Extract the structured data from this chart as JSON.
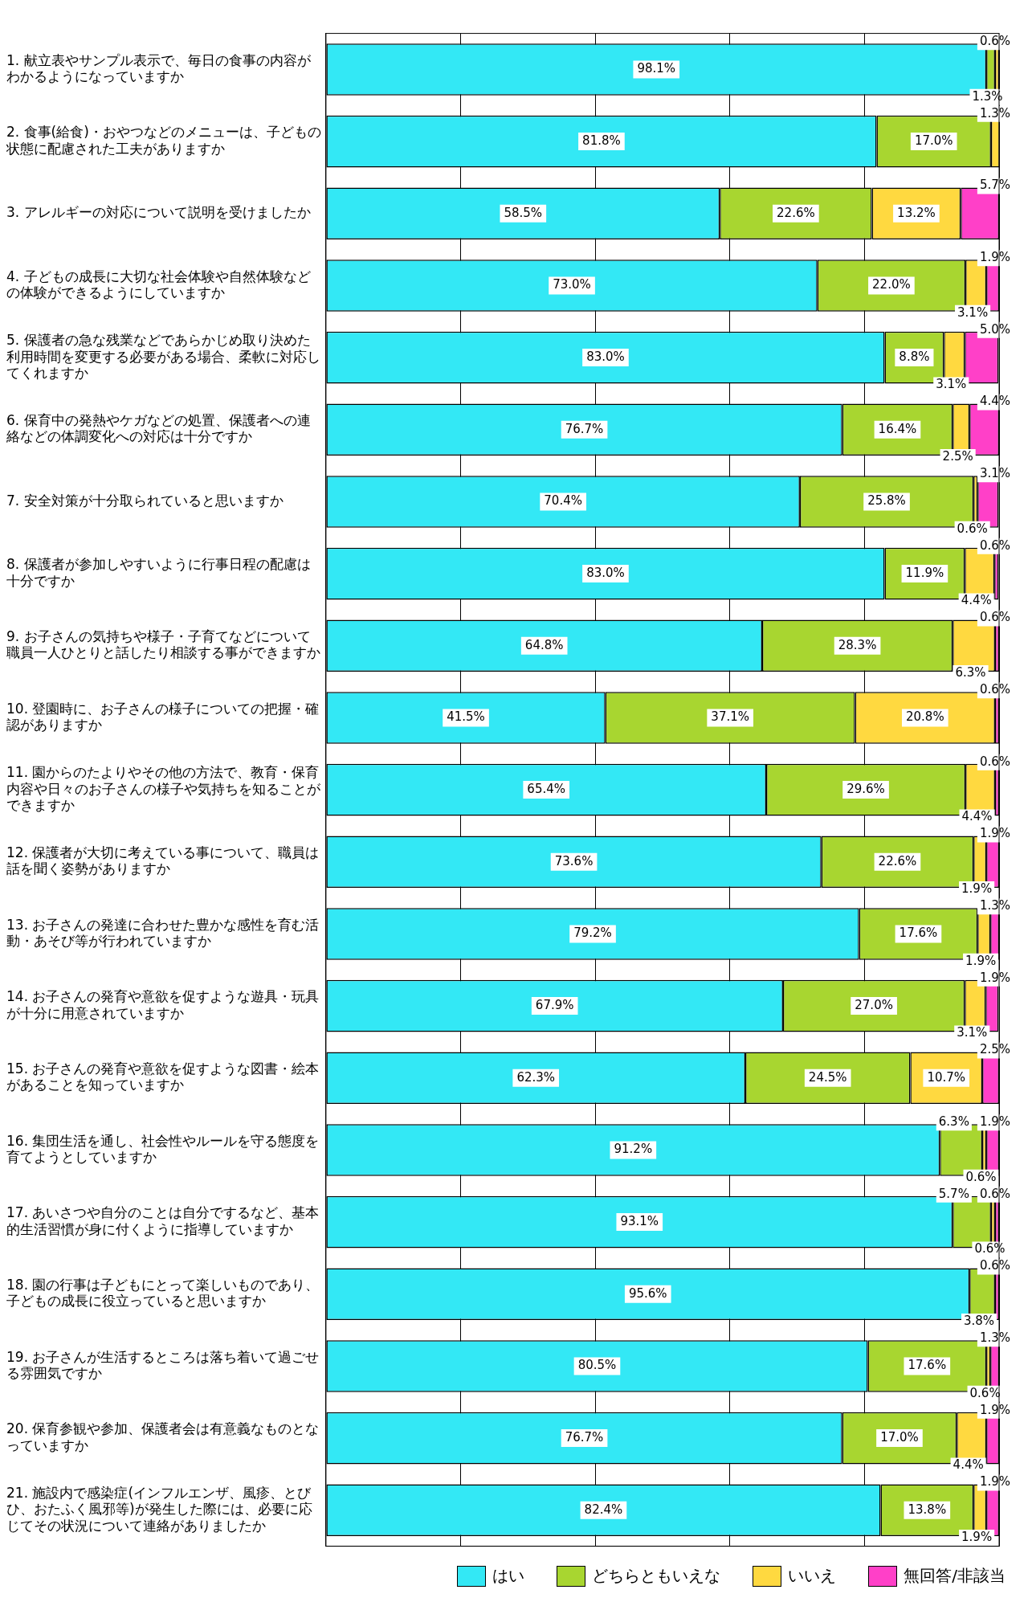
{
  "chart_data": {
    "type": "bar",
    "orientation": "horizontal",
    "stacked": true,
    "categories": [
      "1. 献立表やサンプル表示で、毎日の食事の内容がわかるようになっていますか",
      "2. 食事(給食)・おやつなどのメニューは、子どもの状態に配慮された工夫がありますか",
      "3. アレルギーの対応について説明を受けましたか",
      "4. 子どもの成長に大切な社会体験や自然体験などの体験ができるようにしていますか",
      "5. 保護者の急な残業などであらかじめ取り決めた利用時間を変更する必要がある場合、柔軟に対応してくれますか",
      "6. 保育中の発熱やケガなどの処置、保護者への連絡などの体調変化への対応は十分ですか",
      "7. 安全対策が十分取られていると思いますか",
      "8. 保護者が参加しやすいように行事日程の配慮は十分ですか",
      "9. お子さんの気持ちや様子・子育てなどについて職員一人ひとりと話したり相談する事ができますか",
      "10. 登園時に、お子さんの様子についての把握・確認がありますか",
      "11. 園からのたよりやその他の方法で、教育・保育内容や日々のお子さんの様子や気持ちを知ることができますか",
      "12. 保護者が大切に考えている事について、職員は話を聞く姿勢がありますか",
      "13. お子さんの発達に合わせた豊かな感性を育む活動・あそび等が行われていますか",
      "14. お子さんの発育や意欲を促すような遊具・玩具が十分に用意されていますか",
      "15. お子さんの発育や意欲を促すような図書・絵本があることを知っていますか",
      "16. 集団生活を通し、社会性やルールを守る態度を育てようとしていますか",
      "17. あいさつや自分のことは自分でするなど、基本的生活習慣が身に付くように指導していますか",
      "18. 園の行事は子どもにとって楽しいものであり、子どもの成長に役立っていると思いますか",
      "19. お子さんが生活するところは落ち着いて過ごせる雰囲気ですか",
      "20. 保育参観や参加、保護者会は有意義なものとなっていますか",
      "21. 施設内で感染症(インフルエンザ、風疹、とびひ、おたふく風邪等)が発生した際には、必要に応じてその状況について連絡がありましたか"
    ],
    "series": [
      {
        "name": "はい",
        "color": "#33e8f5",
        "values": [
          98.1,
          81.8,
          58.5,
          73.0,
          83.0,
          76.7,
          70.4,
          83.0,
          64.8,
          41.5,
          65.4,
          73.6,
          79.2,
          67.9,
          62.3,
          91.2,
          93.1,
          95.6,
          80.5,
          76.7,
          82.4
        ],
        "value_labels": [
          "98.1%",
          "81.8%",
          "58.5%",
          "73.0%",
          "83.0%",
          "76.7%",
          "70.4%",
          "83.0%",
          "64.8%",
          "41.5%",
          "65.4%",
          "73.6%",
          "79.2%",
          "67.9%",
          "62.3%",
          "91.2%",
          "93.1%",
          "95.6%",
          "80.5%",
          "76.7%",
          "82.4%"
        ]
      },
      {
        "name": "どちらともいえな",
        "color": "#a8d630",
        "values": [
          1.3,
          17.0,
          22.6,
          22.0,
          8.8,
          16.4,
          25.8,
          11.9,
          28.3,
          37.1,
          29.6,
          22.6,
          17.6,
          27.0,
          24.5,
          6.3,
          5.7,
          3.8,
          17.6,
          17.0,
          13.8
        ],
        "value_labels": [
          "1.3%",
          "17.0%",
          "22.6%",
          "22.0%",
          "8.8%",
          "16.4%",
          "25.8%",
          "11.9%",
          "28.3%",
          "37.1%",
          "29.6%",
          "22.6%",
          "17.6%",
          "27.0%",
          "24.5%",
          "6.3%",
          "5.7%",
          "3.8%",
          "17.6%",
          "17.0%",
          "13.8%"
        ]
      },
      {
        "name": "いいえ",
        "color": "#ffd940",
        "values": [
          0.6,
          1.3,
          13.2,
          3.1,
          3.1,
          2.5,
          0.6,
          4.4,
          6.3,
          20.8,
          4.4,
          1.9,
          1.9,
          3.1,
          10.7,
          0.6,
          0.6,
          null,
          0.6,
          4.4,
          1.9
        ],
        "value_labels": [
          "0.6%",
          "1.3%",
          "13.2%",
          "3.1%",
          "3.1%",
          "2.5%",
          "0.6%",
          "4.4%",
          "6.3%",
          "20.8%",
          "4.4%",
          "1.9%",
          "1.9%",
          "3.1%",
          "10.7%",
          "0.6%",
          "0.6%",
          null,
          "0.6%",
          "4.4%",
          "1.9%"
        ]
      },
      {
        "name": "無回答/非該当",
        "color": "#ff40c8",
        "values": [
          null,
          null,
          5.7,
          1.9,
          5.0,
          4.4,
          3.1,
          0.6,
          0.6,
          0.6,
          0.6,
          1.9,
          1.3,
          1.9,
          2.5,
          1.9,
          0.6,
          0.6,
          1.3,
          1.9,
          1.9
        ],
        "value_labels": [
          null,
          null,
          "5.7%",
          "1.9%",
          "5.0%",
          "4.4%",
          "3.1%",
          "0.6%",
          "0.6%",
          "0.6%",
          "0.6%",
          "1.9%",
          "1.3%",
          "1.9%",
          "2.5%",
          "1.9%",
          "0.6%",
          "0.6%",
          "1.3%",
          "1.9%",
          "1.9%"
        ]
      }
    ],
    "xlim": [
      0,
      100
    ],
    "xticks": [
      {
        "value": 0,
        "label": null
      },
      {
        "value": 20,
        "label": null
      },
      {
        "value": 40,
        "label": null
      },
      {
        "value": 60,
        "label": null
      },
      {
        "value": 80,
        "label": null
      },
      {
        "value": 100,
        "label": null
      }
    ],
    "grid": "x",
    "legend": "bottom",
    "tick_labels": "y"
  }
}
